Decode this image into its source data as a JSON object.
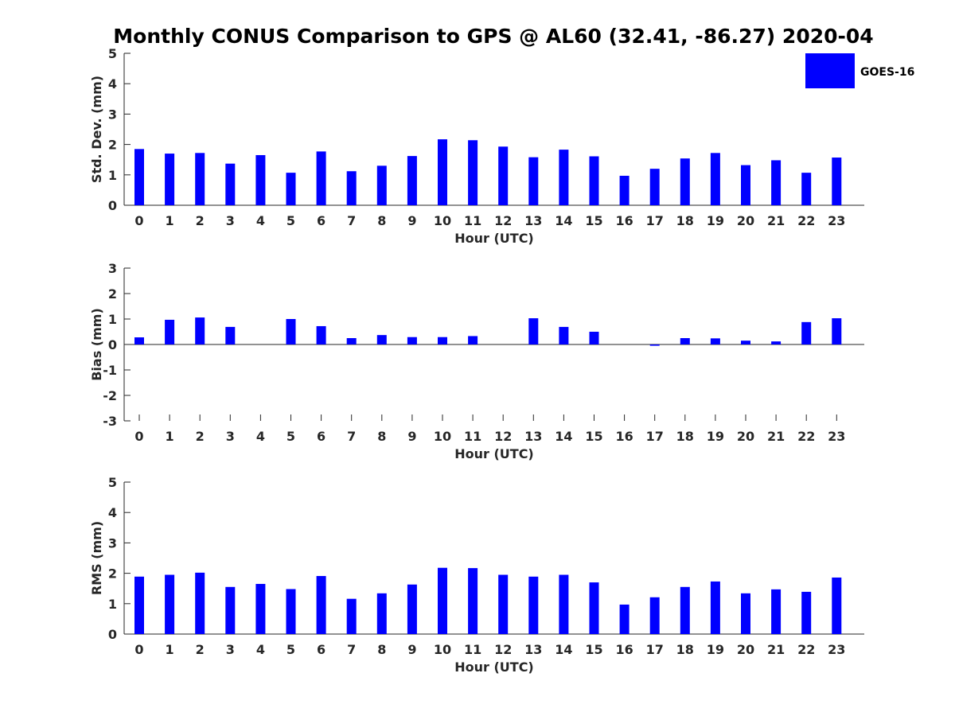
{
  "title": "Monthly CONUS Comparison to GPS @ AL60 (32.41, -86.27) 2020-04",
  "legend": {
    "label": "GOES-16",
    "color": "#0000ff",
    "placement": "top-right"
  },
  "chart_data": [
    {
      "type": "bar",
      "ylabel": "Std. Dev. (mm)",
      "xlabel": "Hour (UTC)",
      "categories": [
        "0",
        "1",
        "2",
        "3",
        "4",
        "5",
        "6",
        "7",
        "8",
        "9",
        "10",
        "11",
        "12",
        "13",
        "14",
        "15",
        "16",
        "17",
        "18",
        "19",
        "20",
        "21",
        "22",
        "23"
      ],
      "yticks": [
        "0",
        "1",
        "2",
        "3",
        "4",
        "5"
      ],
      "ylim": [
        0,
        5
      ],
      "series": [
        {
          "name": "GOES-16",
          "color": "#0000ff",
          "values": [
            1.85,
            1.7,
            1.72,
            1.37,
            1.65,
            1.07,
            1.77,
            1.12,
            1.3,
            1.62,
            2.17,
            2.14,
            1.93,
            1.58,
            1.83,
            1.61,
            0.97,
            1.2,
            1.54,
            1.72,
            1.32,
            1.48,
            1.07,
            1.57
          ]
        }
      ],
      "grid": false
    },
    {
      "type": "bar",
      "ylabel": "Bias (mm)",
      "xlabel": "Hour (UTC)",
      "categories": [
        "0",
        "1",
        "2",
        "3",
        "4",
        "5",
        "6",
        "7",
        "8",
        "9",
        "10",
        "11",
        "12",
        "13",
        "14",
        "15",
        "16",
        "17",
        "18",
        "19",
        "20",
        "21",
        "22",
        "23"
      ],
      "yticks": [
        "-3",
        "-2",
        "-1",
        "0",
        "1",
        "2",
        "3"
      ],
      "ylim": [
        -3,
        3
      ],
      "series": [
        {
          "name": "GOES-16",
          "color": "#0000ff",
          "values": [
            0.28,
            0.97,
            1.06,
            0.69,
            0.0,
            1.0,
            0.72,
            0.25,
            0.37,
            0.29,
            0.29,
            0.33,
            0.0,
            1.03,
            0.69,
            0.5,
            0.0,
            -0.05,
            0.25,
            0.24,
            0.15,
            0.12,
            0.88,
            1.03
          ]
        }
      ],
      "grid": false
    },
    {
      "type": "bar",
      "ylabel": "RMS (mm)",
      "xlabel": "Hour (UTC)",
      "categories": [
        "0",
        "1",
        "2",
        "3",
        "4",
        "5",
        "6",
        "7",
        "8",
        "9",
        "10",
        "11",
        "12",
        "13",
        "14",
        "15",
        "16",
        "17",
        "18",
        "19",
        "20",
        "21",
        "22",
        "23"
      ],
      "yticks": [
        "0",
        "1",
        "2",
        "3",
        "4",
        "5"
      ],
      "ylim": [
        0,
        5
      ],
      "series": [
        {
          "name": "GOES-16",
          "color": "#0000ff",
          "values": [
            1.89,
            1.95,
            2.02,
            1.55,
            1.65,
            1.48,
            1.91,
            1.16,
            1.34,
            1.63,
            2.18,
            2.17,
            1.95,
            1.89,
            1.95,
            1.7,
            0.97,
            1.21,
            1.55,
            1.73,
            1.34,
            1.47,
            1.39,
            1.86
          ]
        }
      ],
      "grid": false
    }
  ]
}
